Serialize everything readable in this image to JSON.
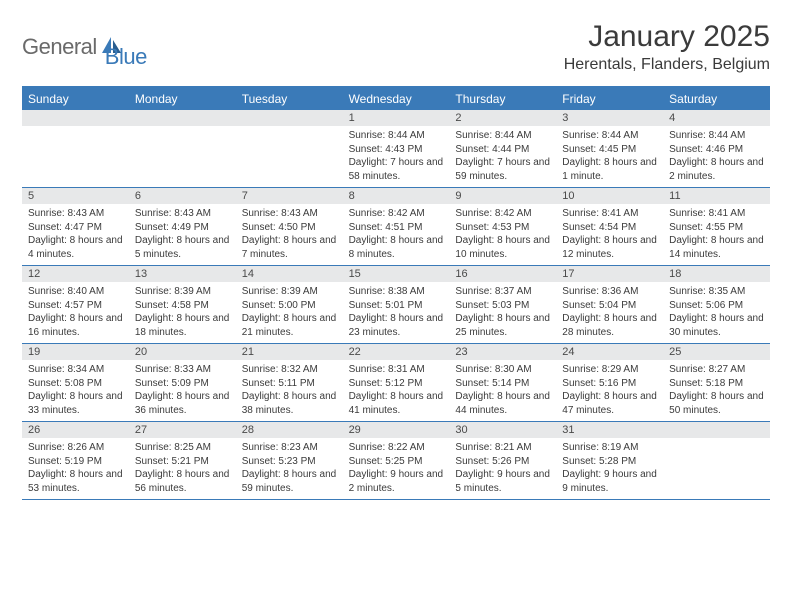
{
  "brand": {
    "part1": "General",
    "part2": "Blue"
  },
  "title": "January 2025",
  "location": "Herentals, Flanders, Belgium",
  "colors": {
    "brand_blue": "#3a7ab8",
    "header_bg": "#3a7ab8",
    "daynum_bg": "#e7e8e9",
    "text": "#3b3b3b",
    "logo_gray": "#6a6a6a"
  },
  "dow": [
    "Sunday",
    "Monday",
    "Tuesday",
    "Wednesday",
    "Thursday",
    "Friday",
    "Saturday"
  ],
  "weeks": [
    [
      {
        "day": "",
        "lines": []
      },
      {
        "day": "",
        "lines": []
      },
      {
        "day": "",
        "lines": []
      },
      {
        "day": "1",
        "lines": [
          "Sunrise: 8:44 AM",
          "Sunset: 4:43 PM",
          "Daylight: 7 hours and 58 minutes."
        ]
      },
      {
        "day": "2",
        "lines": [
          "Sunrise: 8:44 AM",
          "Sunset: 4:44 PM",
          "Daylight: 7 hours and 59 minutes."
        ]
      },
      {
        "day": "3",
        "lines": [
          "Sunrise: 8:44 AM",
          "Sunset: 4:45 PM",
          "Daylight: 8 hours and 1 minute."
        ]
      },
      {
        "day": "4",
        "lines": [
          "Sunrise: 8:44 AM",
          "Sunset: 4:46 PM",
          "Daylight: 8 hours and 2 minutes."
        ]
      }
    ],
    [
      {
        "day": "5",
        "lines": [
          "Sunrise: 8:43 AM",
          "Sunset: 4:47 PM",
          "Daylight: 8 hours and 4 minutes."
        ]
      },
      {
        "day": "6",
        "lines": [
          "Sunrise: 8:43 AM",
          "Sunset: 4:49 PM",
          "Daylight: 8 hours and 5 minutes."
        ]
      },
      {
        "day": "7",
        "lines": [
          "Sunrise: 8:43 AM",
          "Sunset: 4:50 PM",
          "Daylight: 8 hours and 7 minutes."
        ]
      },
      {
        "day": "8",
        "lines": [
          "Sunrise: 8:42 AM",
          "Sunset: 4:51 PM",
          "Daylight: 8 hours and 8 minutes."
        ]
      },
      {
        "day": "9",
        "lines": [
          "Sunrise: 8:42 AM",
          "Sunset: 4:53 PM",
          "Daylight: 8 hours and 10 minutes."
        ]
      },
      {
        "day": "10",
        "lines": [
          "Sunrise: 8:41 AM",
          "Sunset: 4:54 PM",
          "Daylight: 8 hours and 12 minutes."
        ]
      },
      {
        "day": "11",
        "lines": [
          "Sunrise: 8:41 AM",
          "Sunset: 4:55 PM",
          "Daylight: 8 hours and 14 minutes."
        ]
      }
    ],
    [
      {
        "day": "12",
        "lines": [
          "Sunrise: 8:40 AM",
          "Sunset: 4:57 PM",
          "Daylight: 8 hours and 16 minutes."
        ]
      },
      {
        "day": "13",
        "lines": [
          "Sunrise: 8:39 AM",
          "Sunset: 4:58 PM",
          "Daylight: 8 hours and 18 minutes."
        ]
      },
      {
        "day": "14",
        "lines": [
          "Sunrise: 8:39 AM",
          "Sunset: 5:00 PM",
          "Daylight: 8 hours and 21 minutes."
        ]
      },
      {
        "day": "15",
        "lines": [
          "Sunrise: 8:38 AM",
          "Sunset: 5:01 PM",
          "Daylight: 8 hours and 23 minutes."
        ]
      },
      {
        "day": "16",
        "lines": [
          "Sunrise: 8:37 AM",
          "Sunset: 5:03 PM",
          "Daylight: 8 hours and 25 minutes."
        ]
      },
      {
        "day": "17",
        "lines": [
          "Sunrise: 8:36 AM",
          "Sunset: 5:04 PM",
          "Daylight: 8 hours and 28 minutes."
        ]
      },
      {
        "day": "18",
        "lines": [
          "Sunrise: 8:35 AM",
          "Sunset: 5:06 PM",
          "Daylight: 8 hours and 30 minutes."
        ]
      }
    ],
    [
      {
        "day": "19",
        "lines": [
          "Sunrise: 8:34 AM",
          "Sunset: 5:08 PM",
          "Daylight: 8 hours and 33 minutes."
        ]
      },
      {
        "day": "20",
        "lines": [
          "Sunrise: 8:33 AM",
          "Sunset: 5:09 PM",
          "Daylight: 8 hours and 36 minutes."
        ]
      },
      {
        "day": "21",
        "lines": [
          "Sunrise: 8:32 AM",
          "Sunset: 5:11 PM",
          "Daylight: 8 hours and 38 minutes."
        ]
      },
      {
        "day": "22",
        "lines": [
          "Sunrise: 8:31 AM",
          "Sunset: 5:12 PM",
          "Daylight: 8 hours and 41 minutes."
        ]
      },
      {
        "day": "23",
        "lines": [
          "Sunrise: 8:30 AM",
          "Sunset: 5:14 PM",
          "Daylight: 8 hours and 44 minutes."
        ]
      },
      {
        "day": "24",
        "lines": [
          "Sunrise: 8:29 AM",
          "Sunset: 5:16 PM",
          "Daylight: 8 hours and 47 minutes."
        ]
      },
      {
        "day": "25",
        "lines": [
          "Sunrise: 8:27 AM",
          "Sunset: 5:18 PM",
          "Daylight: 8 hours and 50 minutes."
        ]
      }
    ],
    [
      {
        "day": "26",
        "lines": [
          "Sunrise: 8:26 AM",
          "Sunset: 5:19 PM",
          "Daylight: 8 hours and 53 minutes."
        ]
      },
      {
        "day": "27",
        "lines": [
          "Sunrise: 8:25 AM",
          "Sunset: 5:21 PM",
          "Daylight: 8 hours and 56 minutes."
        ]
      },
      {
        "day": "28",
        "lines": [
          "Sunrise: 8:23 AM",
          "Sunset: 5:23 PM",
          "Daylight: 8 hours and 59 minutes."
        ]
      },
      {
        "day": "29",
        "lines": [
          "Sunrise: 8:22 AM",
          "Sunset: 5:25 PM",
          "Daylight: 9 hours and 2 minutes."
        ]
      },
      {
        "day": "30",
        "lines": [
          "Sunrise: 8:21 AM",
          "Sunset: 5:26 PM",
          "Daylight: 9 hours and 5 minutes."
        ]
      },
      {
        "day": "31",
        "lines": [
          "Sunrise: 8:19 AM",
          "Sunset: 5:28 PM",
          "Daylight: 9 hours and 9 minutes."
        ]
      },
      {
        "day": "",
        "lines": []
      }
    ]
  ]
}
